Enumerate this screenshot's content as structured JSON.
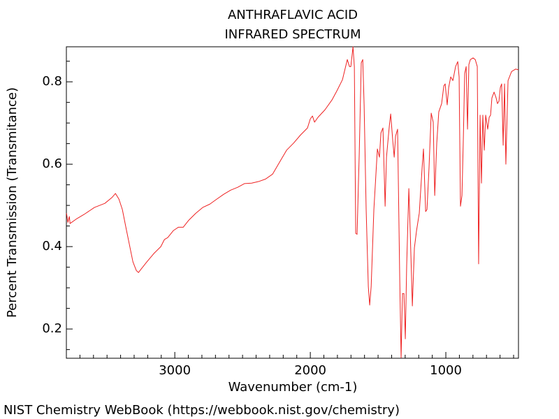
{
  "chart_data": {
    "type": "line",
    "title": "ANTHRAFLAVIC ACID",
    "subtitle": "INFRARED SPECTRUM",
    "x_label": "Wavenumber (cm-1)",
    "y_label": "Percent Transmission (Transmitance)",
    "footer": "NIST Chemistry WebBook (https://webbook.nist.gov/chemistry)",
    "color": "#ee2222",
    "xlim": [
      3800,
      464
    ],
    "ylim": [
      0.129,
      0.885
    ],
    "xticks": [
      3000,
      2000,
      1000
    ],
    "yticks": [
      0.2,
      0.4,
      0.6,
      0.8
    ],
    "xminorticks": [
      3700,
      3600,
      3500,
      3400,
      3300,
      3200,
      3100,
      2900,
      2800,
      2700,
      2600,
      2500,
      2400,
      2300,
      2200,
      2100,
      1900,
      1800,
      1700,
      1600,
      1500,
      1400,
      1300,
      1200,
      1100,
      900,
      800,
      700,
      600,
      500
    ],
    "yminorticks": [
      0.15,
      0.25,
      0.3,
      0.35,
      0.45,
      0.5,
      0.55,
      0.65,
      0.7,
      0.75,
      0.85
    ],
    "x": [
      3799,
      3789,
      3778,
      3773,
      3722,
      3670,
      3593,
      3516,
      3464,
      3438,
      3412,
      3387,
      3361,
      3335,
      3309,
      3284,
      3268,
      3247,
      3206,
      3155,
      3103,
      3077,
      3052,
      3010,
      2974,
      2938,
      2897,
      2845,
      2794,
      2742,
      2691,
      2639,
      2588,
      2536,
      2485,
      2433,
      2381,
      2330,
      2278,
      2227,
      2175,
      2124,
      2072,
      2021,
      2000,
      1984,
      1969,
      1943,
      1892,
      1840,
      1804,
      1763,
      1727,
      1711,
      1701,
      1685,
      1675,
      1665,
      1655,
      1639,
      1624,
      1613,
      1603,
      1588,
      1572,
      1562,
      1551,
      1531,
      1505,
      1490,
      1479,
      1464,
      1448,
      1438,
      1417,
      1407,
      1392,
      1381,
      1371,
      1356,
      1340,
      1330,
      1320,
      1309,
      1299,
      1289,
      1273,
      1263,
      1247,
      1232,
      1216,
      1196,
      1175,
      1165,
      1149,
      1139,
      1124,
      1108,
      1093,
      1082,
      1067,
      1052,
      1031,
      1015,
      1005,
      990,
      979,
      964,
      948,
      928,
      912,
      902,
      892,
      881,
      871,
      861,
      850,
      840,
      830,
      819,
      799,
      783,
      768,
      758,
      747,
      737,
      727,
      716,
      706,
      691,
      680,
      670,
      660,
      644,
      629,
      619,
      608,
      598,
      588,
      577,
      567,
      557,
      541,
      515,
      484,
      464
    ],
    "values": [
      0.481,
      0.459,
      0.473,
      0.456,
      0.468,
      0.478,
      0.495,
      0.505,
      0.519,
      0.529,
      0.515,
      0.49,
      0.447,
      0.405,
      0.363,
      0.342,
      0.337,
      0.346,
      0.363,
      0.383,
      0.4,
      0.417,
      0.422,
      0.439,
      0.447,
      0.447,
      0.464,
      0.481,
      0.495,
      0.503,
      0.515,
      0.527,
      0.537,
      0.544,
      0.553,
      0.554,
      0.558,
      0.564,
      0.576,
      0.605,
      0.634,
      0.651,
      0.671,
      0.688,
      0.71,
      0.717,
      0.702,
      0.714,
      0.732,
      0.756,
      0.778,
      0.805,
      0.854,
      0.837,
      0.837,
      0.885,
      0.837,
      0.432,
      0.43,
      0.625,
      0.846,
      0.854,
      0.744,
      0.49,
      0.303,
      0.258,
      0.303,
      0.49,
      0.637,
      0.617,
      0.676,
      0.688,
      0.498,
      0.617,
      0.693,
      0.722,
      0.659,
      0.617,
      0.668,
      0.685,
      0.32,
      0.13,
      0.286,
      0.286,
      0.176,
      0.354,
      0.541,
      0.439,
      0.256,
      0.397,
      0.439,
      0.481,
      0.592,
      0.637,
      0.485,
      0.49,
      0.592,
      0.724,
      0.702,
      0.524,
      0.651,
      0.727,
      0.747,
      0.79,
      0.795,
      0.744,
      0.786,
      0.812,
      0.803,
      0.837,
      0.849,
      0.812,
      0.498,
      0.524,
      0.659,
      0.82,
      0.837,
      0.685,
      0.842,
      0.854,
      0.858,
      0.854,
      0.837,
      0.358,
      0.719,
      0.554,
      0.719,
      0.634,
      0.719,
      0.685,
      0.714,
      0.719,
      0.761,
      0.775,
      0.761,
      0.747,
      0.753,
      0.786,
      0.795,
      0.646,
      0.795,
      0.6,
      0.803,
      0.825,
      0.831,
      0.829
    ]
  }
}
